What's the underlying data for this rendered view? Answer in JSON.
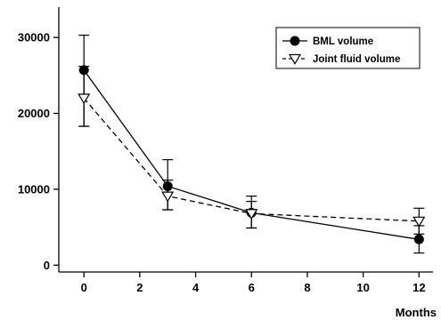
{
  "chart_data": {
    "type": "line",
    "title": "",
    "xlabel": "Months",
    "ylabel": "",
    "xlim": [
      -0.9,
      12.5
    ],
    "ylim": [
      -900,
      34000
    ],
    "x_ticks": [
      0,
      2,
      4,
      6,
      8,
      10,
      12
    ],
    "y_ticks": [
      0,
      10000,
      20000,
      30000
    ],
    "grid": false,
    "legend_position": "top-right",
    "series": [
      {
        "name": "BML volume",
        "marker": "filled-circle",
        "line_style": "solid",
        "color": "#000000",
        "x": [
          0,
          3,
          6,
          12
        ],
        "y": [
          25700,
          10400,
          6900,
          3400
        ],
        "error_low": [
          18300,
          7300,
          4900,
          1600
        ],
        "error_high": [
          30300,
          13900,
          9100,
          5200
        ]
      },
      {
        "name": "Joint fluid volume",
        "marker": "open-triangle-down",
        "line_style": "dashed",
        "color": "#000000",
        "x": [
          0,
          3,
          6,
          12
        ],
        "y": [
          22000,
          9100,
          6800,
          5800
        ],
        "error_low": [
          18300,
          7300,
          4900,
          4100
        ],
        "error_high": [
          26200,
          11200,
          8400,
          7500
        ]
      }
    ]
  }
}
